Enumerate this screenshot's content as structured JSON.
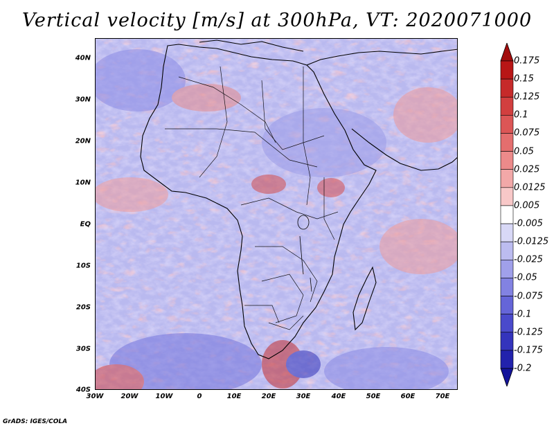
{
  "title": "Vertical velocity [m/s] at 300hPa, VT: 2020071000",
  "credit": "GrADS: IGES/COLA",
  "lat_labels": [
    "40N",
    "30N",
    "20N",
    "10N",
    "EQ",
    "10S",
    "20S",
    "30S",
    "40S"
  ],
  "lon_labels": [
    "30W",
    "20W",
    "10W",
    "0",
    "10E",
    "20E",
    "30E",
    "40E",
    "50E",
    "60E",
    "70E"
  ],
  "colorbar": {
    "labels": [
      "0.175",
      "0.15",
      "0.125",
      "0.1",
      "0.075",
      "0.05",
      "0.025",
      "0.0125",
      "0.005",
      "-0.005",
      "-0.0125",
      "-0.025",
      "-0.05",
      "-0.075",
      "-0.1",
      "-0.125",
      "-0.175",
      "-0.2"
    ],
    "colors": [
      "#b81616",
      "#c62a2a",
      "#d23f3f",
      "#dc5656",
      "#e46e6e",
      "#ec8a8a",
      "#f2a8a8",
      "#f8c8c8",
      "#ffffff",
      "#d8d8f6",
      "#bcbcf0",
      "#a0a0ea",
      "#8282e2",
      "#6565d8",
      "#4a4acb",
      "#3434bc",
      "#2222ac"
    ],
    "top_color": "#a30d0d",
    "bottom_color": "#14149a"
  }
}
